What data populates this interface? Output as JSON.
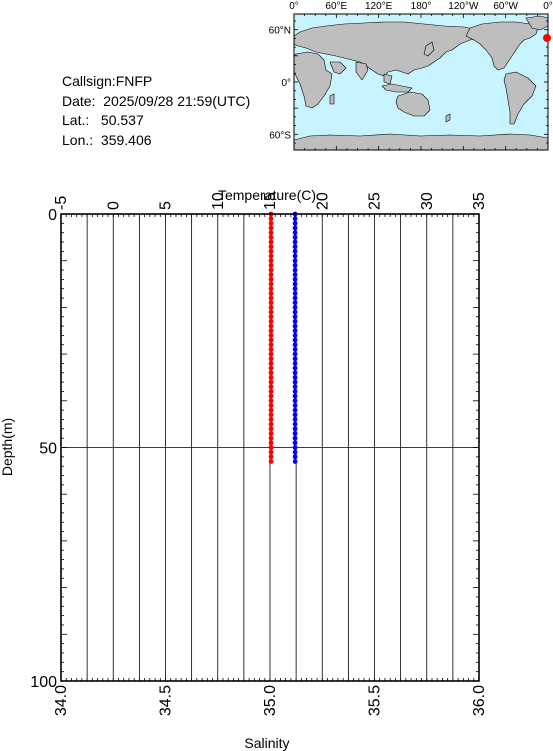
{
  "station": {
    "callsign": "Callsign:FNFP",
    "date": "Date:  2025/09/28 21:59(UTC)",
    "lat": "Lat.:   50.537",
    "lon": "Lon.:  359.406"
  },
  "map": {
    "lon_labels": [
      "0°",
      "60°E",
      "120°E",
      "180°",
      "120°W",
      "60°W",
      "0°"
    ],
    "lat_labels": [
      "60°N",
      "0°",
      "60°S"
    ],
    "colors": {
      "ocean": "#c8f4ff",
      "land": "#bebebe",
      "marker": "#ff0000"
    },
    "marker": {
      "lon": 359.406,
      "lat": 50.537
    }
  },
  "chart_data": {
    "type": "line",
    "ylabel": "Depth(m)",
    "ylim": [
      100,
      0
    ],
    "yticks": [
      "0",
      "50",
      "100"
    ],
    "top_axis": {
      "label": "Temperature(C)",
      "range": [
        -5,
        35
      ],
      "ticks": [
        "-5",
        "0",
        "5",
        "10",
        "15",
        "20",
        "25",
        "30",
        "35"
      ]
    },
    "bottom_axis": {
      "label": "Salinity",
      "range": [
        34.0,
        36.0
      ],
      "ticks": [
        "34.0",
        "34.5",
        "35.0",
        "35.5",
        "36.0"
      ]
    },
    "grid": true,
    "depth": [
      0,
      1,
      2,
      3,
      4,
      5,
      6,
      7,
      8,
      9,
      10,
      11,
      12,
      13,
      14,
      15,
      16,
      17,
      18,
      19,
      20,
      21,
      22,
      23,
      24,
      25,
      26,
      27,
      28,
      29,
      30,
      31,
      32,
      33,
      34,
      35,
      36,
      37,
      38,
      39,
      40,
      41,
      42,
      43,
      44,
      45,
      46,
      47,
      48,
      49,
      50,
      51,
      52,
      53
    ],
    "temperature": {
      "color": "#ff0000",
      "values": [
        15.1,
        15.1,
        15.1,
        15.1,
        15.1,
        15.1,
        15.1,
        15.1,
        15.1,
        15.1,
        15.1,
        15.1,
        15.1,
        15.1,
        15.1,
        15.1,
        15.1,
        15.1,
        15.1,
        15.1,
        15.1,
        15.1,
        15.1,
        15.1,
        15.1,
        15.1,
        15.1,
        15.1,
        15.1,
        15.1,
        15.1,
        15.1,
        15.1,
        15.1,
        15.1,
        15.1,
        15.1,
        15.1,
        15.1,
        15.1,
        15.1,
        15.1,
        15.1,
        15.1,
        15.1,
        15.1,
        15.1,
        15.1,
        15.1,
        15.1,
        15.1,
        15.1,
        15.1,
        15.1
      ]
    },
    "salinity": {
      "color": "#0000ff",
      "values": [
        35.12,
        35.12,
        35.12,
        35.12,
        35.12,
        35.12,
        35.12,
        35.12,
        35.12,
        35.12,
        35.12,
        35.12,
        35.12,
        35.12,
        35.12,
        35.12,
        35.12,
        35.12,
        35.12,
        35.12,
        35.12,
        35.12,
        35.12,
        35.12,
        35.12,
        35.12,
        35.12,
        35.12,
        35.12,
        35.12,
        35.12,
        35.12,
        35.12,
        35.12,
        35.12,
        35.12,
        35.12,
        35.12,
        35.12,
        35.12,
        35.12,
        35.12,
        35.12,
        35.12,
        35.12,
        35.12,
        35.12,
        35.12,
        35.12,
        35.12,
        35.12,
        35.12,
        35.12,
        35.12
      ]
    }
  }
}
